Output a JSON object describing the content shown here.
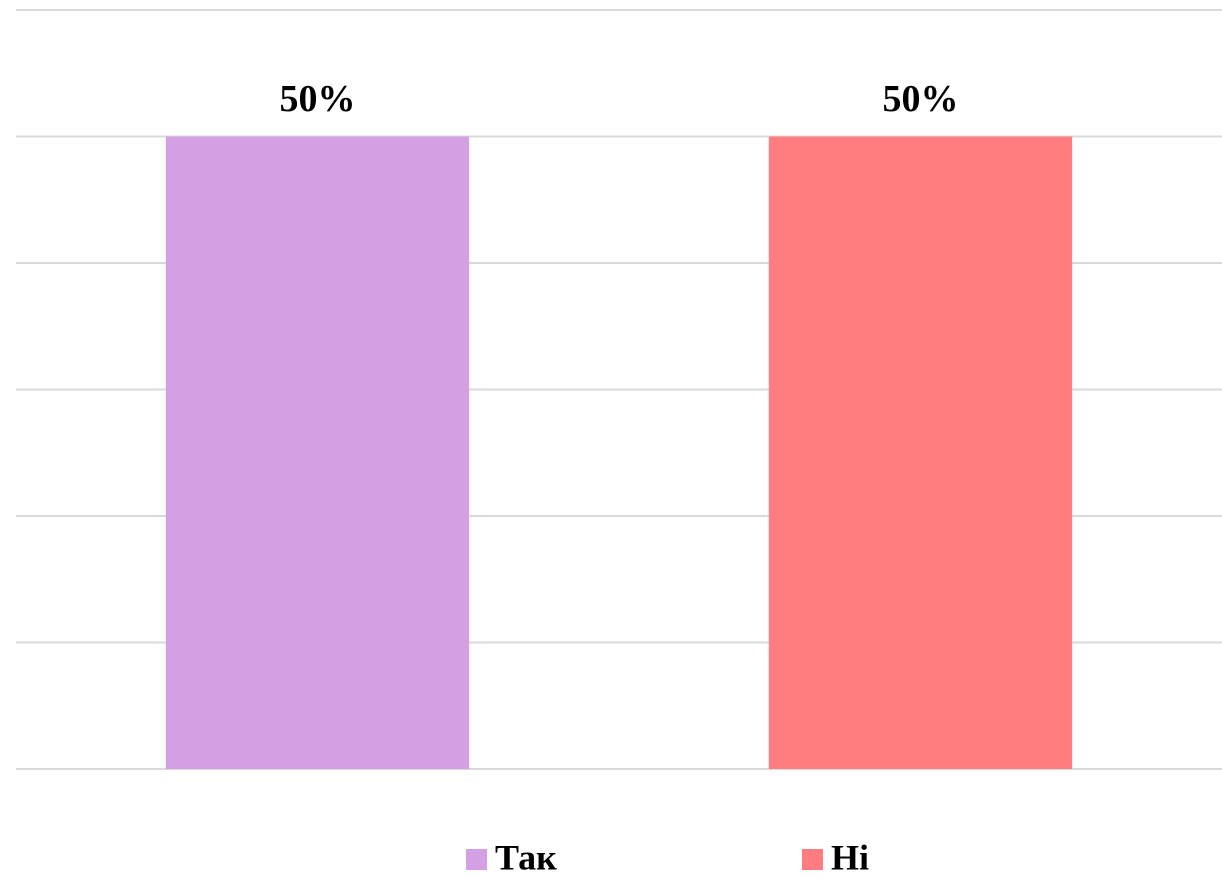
{
  "chart_data": {
    "type": "bar",
    "categories": [
      "Так",
      "Ні"
    ],
    "values": [
      50,
      50
    ],
    "value_labels": [
      "50%",
      "50%"
    ],
    "colors": [
      "#d3a0e4",
      "#ff7c80"
    ],
    "ylim": [
      0,
      60
    ],
    "yticks": [
      0,
      10,
      20,
      30,
      40,
      50,
      60
    ],
    "grid": true,
    "legend": "bottom"
  }
}
